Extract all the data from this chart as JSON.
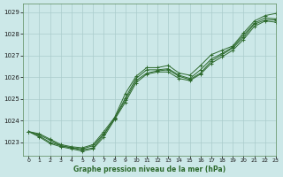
{
  "title": "Graphe pression niveau de la mer (hPa)",
  "bg_color": "#cce8e8",
  "grid_color": "#aacccc",
  "line_color": "#2d6a2d",
  "xlim": [
    -0.5,
    23
  ],
  "ylim": [
    1022.4,
    1029.4
  ],
  "yticks": [
    1023,
    1024,
    1025,
    1026,
    1027,
    1028,
    1029
  ],
  "xticks": [
    0,
    1,
    2,
    3,
    4,
    5,
    6,
    7,
    8,
    9,
    10,
    11,
    12,
    13,
    14,
    15,
    16,
    17,
    18,
    19,
    20,
    21,
    22,
    23
  ],
  "series": [
    [
      1023.5,
      1023.4,
      1023.15,
      1022.9,
      1022.8,
      1022.75,
      1022.9,
      1023.5,
      1024.15,
      1025.25,
      1026.05,
      1026.45,
      1026.45,
      1026.55,
      1026.2,
      1026.1,
      1026.55,
      1027.05,
      1027.25,
      1027.45,
      1028.05,
      1028.6,
      1028.85,
      1028.95
    ],
    [
      1023.5,
      1023.35,
      1023.1,
      1022.85,
      1022.75,
      1022.7,
      1022.85,
      1023.4,
      1024.1,
      1025.05,
      1025.95,
      1026.35,
      1026.35,
      1026.4,
      1026.1,
      1025.95,
      1026.35,
      1026.85,
      1027.1,
      1027.4,
      1027.95,
      1028.5,
      1028.75,
      1028.7
    ],
    [
      1023.5,
      1023.3,
      1023.0,
      1022.85,
      1022.75,
      1022.65,
      1022.75,
      1023.35,
      1024.1,
      1024.95,
      1025.85,
      1026.2,
      1026.3,
      1026.35,
      1026.05,
      1025.9,
      1026.2,
      1026.75,
      1027.05,
      1027.35,
      1027.85,
      1028.45,
      1028.65,
      1028.65
    ],
    [
      1023.5,
      1023.25,
      1022.95,
      1022.8,
      1022.7,
      1022.6,
      1022.7,
      1023.25,
      1024.05,
      1024.85,
      1025.75,
      1026.15,
      1026.25,
      1026.25,
      1025.95,
      1025.85,
      1026.15,
      1026.65,
      1026.95,
      1027.25,
      1027.75,
      1028.35,
      1028.6,
      1028.55
    ]
  ]
}
